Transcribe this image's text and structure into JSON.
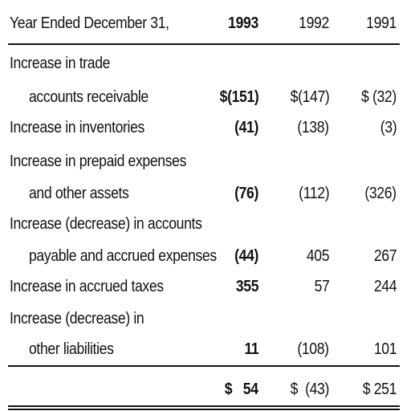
{
  "header": {
    "label": "Year Ended December 31,",
    "col_1993": "1993",
    "col_1992": "1992",
    "col_1991": "1991"
  },
  "rows": [
    {
      "label": "Increase in trade",
      "v1993": "",
      "v1992": "",
      "v1991": ""
    },
    {
      "label": "accounts receivable",
      "v1993": "$(151)",
      "v1992": "$(147)",
      "v1991": "$ (32)"
    },
    {
      "label": "Increase in inventories",
      "v1993": "(41)",
      "v1992": "(138)",
      "v1991": "(3)"
    },
    {
      "label": "Increase in prepaid expenses",
      "v1993": "",
      "v1992": "",
      "v1991": ""
    },
    {
      "label": "and other assets",
      "v1993": "(76)",
      "v1992": "(112)",
      "v1991": "(326)"
    },
    {
      "label": "Increase (decrease) in accounts",
      "v1993": "",
      "v1992": "",
      "v1991": ""
    },
    {
      "label": "payable and accrued expenses",
      "v1993": "(44)",
      "v1992": "405",
      "v1991": "267"
    },
    {
      "label": "Increase in accrued taxes",
      "v1993": "355",
      "v1992": "57",
      "v1991": "244"
    },
    {
      "label": "Increase (decrease) in",
      "v1993": "",
      "v1992": "",
      "v1991": ""
    },
    {
      "label": "other liabilities",
      "v1993": "11",
      "v1992": "(108)",
      "v1991": "101"
    }
  ],
  "total": {
    "v1993": "$   54",
    "v1992": "$  (43)",
    "v1991": "$ 251"
  }
}
